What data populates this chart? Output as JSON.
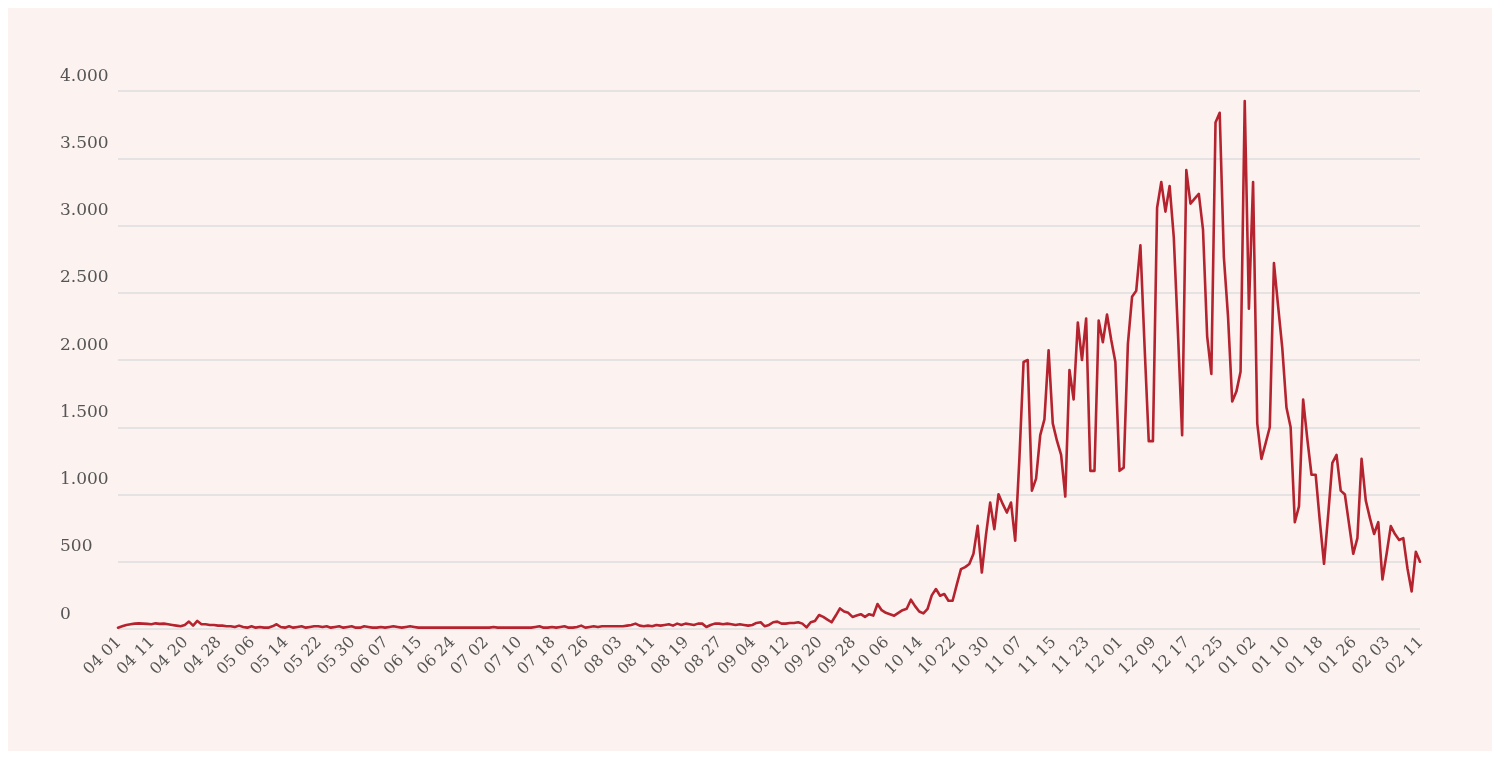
{
  "chart_data": {
    "type": "line",
    "categories": [
      "04 01",
      null,
      null,
      null,
      null,
      null,
      null,
      null,
      "04 11",
      null,
      null,
      null,
      null,
      null,
      null,
      null,
      "04 20",
      null,
      null,
      null,
      null,
      null,
      null,
      null,
      "04 28",
      null,
      null,
      null,
      null,
      null,
      null,
      null,
      "05 06",
      null,
      null,
      null,
      null,
      null,
      null,
      null,
      "05 14",
      null,
      null,
      null,
      null,
      null,
      null,
      null,
      "05 22",
      null,
      null,
      null,
      null,
      null,
      null,
      null,
      "05 30",
      null,
      null,
      null,
      null,
      null,
      null,
      null,
      "06 07",
      null,
      null,
      null,
      null,
      null,
      null,
      null,
      "06 15",
      null,
      null,
      null,
      null,
      null,
      null,
      null,
      "06 24",
      null,
      null,
      null,
      null,
      null,
      null,
      null,
      "07 02",
      null,
      null,
      null,
      null,
      null,
      null,
      null,
      "07 10",
      null,
      null,
      null,
      null,
      null,
      null,
      null,
      "07 18",
      null,
      null,
      null,
      null,
      null,
      null,
      null,
      "07 26",
      null,
      null,
      null,
      null,
      null,
      null,
      null,
      "08 03",
      null,
      null,
      null,
      null,
      null,
      null,
      null,
      "08 11",
      null,
      null,
      null,
      null,
      null,
      null,
      null,
      "08 19",
      null,
      null,
      null,
      null,
      null,
      null,
      null,
      "08 27",
      null,
      null,
      null,
      null,
      null,
      null,
      null,
      "09 04",
      null,
      null,
      null,
      null,
      null,
      null,
      null,
      "09 12",
      null,
      null,
      null,
      null,
      null,
      null,
      null,
      "09 20",
      null,
      null,
      null,
      null,
      null,
      null,
      null,
      "09 28",
      null,
      null,
      null,
      null,
      null,
      null,
      null,
      "10 06",
      null,
      null,
      null,
      null,
      null,
      null,
      null,
      "10 14",
      null,
      null,
      null,
      null,
      null,
      null,
      null,
      "10 22",
      null,
      null,
      null,
      null,
      null,
      null,
      null,
      "10 30",
      null,
      null,
      null,
      null,
      null,
      null,
      null,
      "11 07",
      null,
      null,
      null,
      null,
      null,
      null,
      null,
      "11 15",
      null,
      null,
      null,
      null,
      null,
      null,
      null,
      "11 23",
      null,
      null,
      null,
      null,
      null,
      null,
      null,
      "12 01",
      null,
      null,
      null,
      null,
      null,
      null,
      null,
      "12 09",
      null,
      null,
      null,
      null,
      null,
      null,
      null,
      "12 17",
      null,
      null,
      null,
      null,
      null,
      null,
      null,
      "12 25",
      null,
      null,
      null,
      null,
      null,
      null,
      null,
      "01 02",
      null,
      null,
      null,
      null,
      null,
      null,
      null,
      "01 10",
      null,
      null,
      null,
      null,
      null,
      null,
      null,
      "01 18",
      null,
      null,
      null,
      null,
      null,
      null,
      null,
      "01 26",
      null,
      null,
      null,
      null,
      null,
      null,
      null,
      "02 03",
      null,
      null,
      null,
      null,
      null,
      null,
      null,
      "02 11"
    ],
    "series": [
      {
        "color": "#b5232f",
        "values": [
          10,
          20,
          30,
          35,
          40,
          42,
          40,
          38,
          35,
          42,
          38,
          40,
          35,
          30,
          25,
          20,
          30,
          55,
          25,
          60,
          35,
          35,
          30,
          30,
          25,
          25,
          20,
          20,
          15,
          25,
          15,
          10,
          20,
          10,
          15,
          10,
          10,
          20,
          35,
          15,
          10,
          20,
          10,
          15,
          20,
          10,
          15,
          20,
          20,
          15,
          20,
          10,
          15,
          20,
          10,
          15,
          20,
          10,
          10,
          20,
          15,
          10,
          10,
          15,
          10,
          15,
          20,
          15,
          10,
          15,
          20,
          15,
          10,
          10,
          10,
          10,
          10,
          10,
          10,
          10,
          10,
          10,
          10,
          10,
          10,
          10,
          10,
          10,
          10,
          10,
          15,
          10,
          10,
          10,
          10,
          10,
          10,
          10,
          10,
          10,
          15,
          20,
          10,
          10,
          15,
          10,
          15,
          20,
          10,
          10,
          15,
          25,
          10,
          15,
          20,
          15,
          20,
          20,
          20,
          20,
          20,
          20,
          25,
          30,
          40,
          25,
          20,
          25,
          20,
          30,
          25,
          30,
          35,
          25,
          40,
          30,
          40,
          35,
          30,
          40,
          40,
          15,
          30,
          40,
          40,
          35,
          40,
          35,
          30,
          35,
          30,
          25,
          30,
          45,
          50,
          20,
          30,
          50,
          55,
          40,
          40,
          45,
          45,
          50,
          40,
          12,
          50,
          60,
          104,
          90,
          70,
          50,
          100,
          153,
          130,
          120,
          90,
          100,
          110,
          90,
          110,
          100,
          186,
          140,
          120,
          110,
          99,
          120,
          140,
          150,
          218,
          170,
          130,
          116,
          150,
          250,
          297,
          247,
          260,
          210,
          210,
          330,
          445,
          460,
          483,
          560,
          767,
          420,
          700,
          940,
          742,
          1002,
          930,
          866,
          940,
          656,
          1265,
          1985,
          2000,
          1029,
          1118,
          1441,
          1559,
          2073,
          1529,
          1400,
          1294,
          985,
          1926,
          1706,
          2279,
          2000,
          2309,
          1176,
          1176,
          2294,
          2132,
          2338,
          2150,
          1985,
          1176,
          1200,
          2118,
          2470,
          2514,
          2853,
          2100,
          1397,
          1397,
          3132,
          3323,
          3103,
          3294,
          2912,
          2200,
          1441,
          3412,
          3162,
          3200,
          3235,
          2970,
          2176,
          1897,
          3765,
          3838,
          2765,
          2323,
          1691,
          1765,
          1912,
          3926,
          2382,
          3323,
          1529,
          1265,
          1380,
          1500,
          2720,
          2400,
          2088,
          1647,
          1500,
          794,
          912,
          1706,
          1412,
          1147,
          1147,
          800,
          485,
          850,
          1235,
          1294,
          1029,
          1000,
          780,
          559,
          676,
          1265,
          956,
          824,
          706,
          794,
          368,
          560,
          765,
          706,
          662,
          676,
          450,
          279,
          574,
          500
        ]
      }
    ],
    "ylim": [
      0,
      4000
    ],
    "yticks": [
      0,
      500,
      {
        "value": 1000,
        "label": "1.000"
      },
      {
        "value": 1500,
        "label": "1.500"
      },
      {
        "value": 2000,
        "label": "2.000"
      },
      {
        "value": 2500,
        "label": "2.500"
      },
      {
        "value": 3000,
        "label": "3.000"
      },
      {
        "value": 3500,
        "label": "3.500"
      },
      {
        "value": 4000,
        "label": "4.000"
      }
    ],
    "grid": "y",
    "marker": "none",
    "line_style": "solid"
  }
}
